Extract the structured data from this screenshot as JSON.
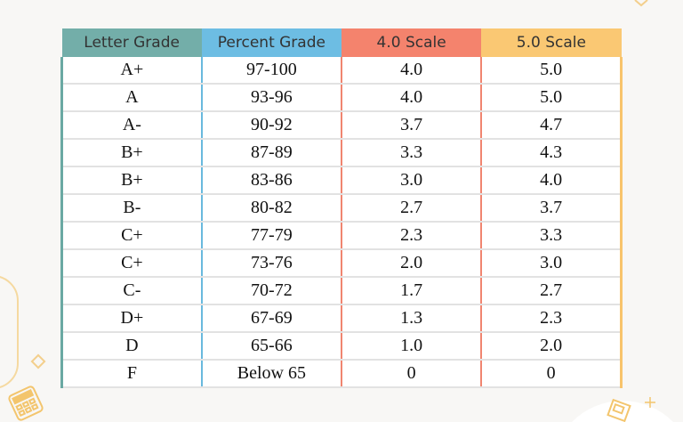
{
  "colors": {
    "letter_header": "#73aea9",
    "percent_header": "#6dbde3",
    "scale4_header": "#f4836d",
    "scale5_header": "#fac873",
    "background": "#f8f7f5"
  },
  "headers": [
    "Letter Grade",
    "Percent Grade",
    "4.0 Scale",
    "5.0 Scale"
  ],
  "rows": [
    [
      "A+",
      "97-100",
      "4.0",
      "5.0"
    ],
    [
      "A",
      "93-96",
      "4.0",
      "5.0"
    ],
    [
      "A-",
      "90-92",
      "3.7",
      "4.7"
    ],
    [
      "B+",
      "87-89",
      "3.3",
      "4.3"
    ],
    [
      "B+",
      "83-86",
      "3.0",
      "4.0"
    ],
    [
      "B-",
      "80-82",
      "2.7",
      "3.7"
    ],
    [
      "C+",
      "77-79",
      "2.3",
      "3.3"
    ],
    [
      "C+",
      "73-76",
      "2.0",
      "3.0"
    ],
    [
      "C-",
      "70-72",
      "1.7",
      "2.7"
    ],
    [
      "D+",
      "67-69",
      "1.3",
      "2.3"
    ],
    [
      "D",
      "65-66",
      "1.0",
      "2.0"
    ],
    [
      "F",
      "Below 65",
      "0",
      "0"
    ]
  ],
  "decorations": [
    "rounded-rect-outline",
    "diamond-outline",
    "calculator-icon",
    "plus-icon",
    "document-icon"
  ]
}
